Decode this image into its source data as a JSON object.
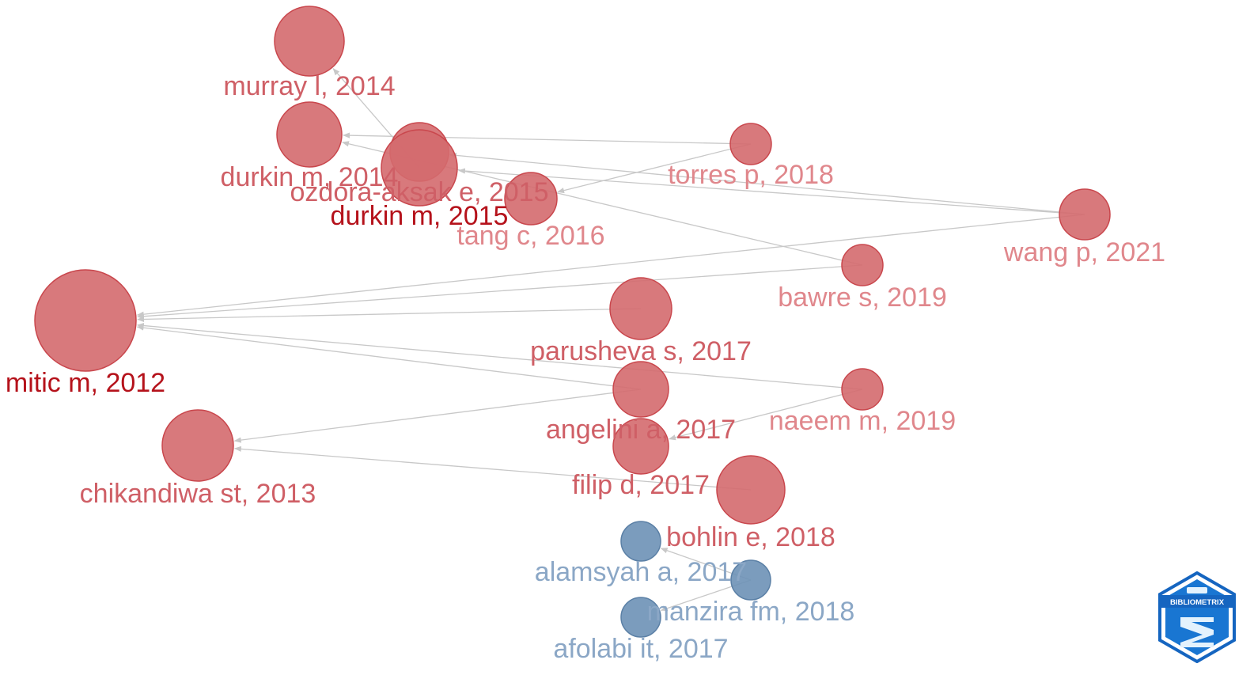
{
  "colors": {
    "cluster_red_fill": "#d46a6e",
    "cluster_red_stroke": "#c9474d",
    "cluster_blue_fill": "#6d91b6",
    "cluster_blue_stroke": "#5b80a6",
    "edge": "#c8c8c8",
    "logo_blue": "#1565c0"
  },
  "nodes": [
    {
      "id": "murray-l-2014",
      "label": "murray l, 2014",
      "cluster": "red"
    },
    {
      "id": "durkin-m-2014",
      "label": "durkin m, 2014",
      "cluster": "red"
    },
    {
      "id": "ozdora-aksak-e-2015",
      "label": "ozdora-aksak e, 2015",
      "cluster": "red"
    },
    {
      "id": "durkin-m-2015",
      "label": "durkin m, 2015",
      "cluster": "red"
    },
    {
      "id": "tang-c-2016",
      "label": "tang c, 2016",
      "cluster": "red"
    },
    {
      "id": "torres-p-2018",
      "label": "torres p, 2018",
      "cluster": "red"
    },
    {
      "id": "wang-p-2021",
      "label": "wang p, 2021",
      "cluster": "red"
    },
    {
      "id": "bawre-s-2019",
      "label": "bawre s, 2019",
      "cluster": "red"
    },
    {
      "id": "mitic-m-2012",
      "label": "mitic m, 2012",
      "cluster": "red"
    },
    {
      "id": "parusheva-s-2017",
      "label": "parusheva s, 2017",
      "cluster": "red"
    },
    {
      "id": "angelini-a-2017",
      "label": "angelini a, 2017",
      "cluster": "red"
    },
    {
      "id": "naeem-m-2019",
      "label": "naeem m, 2019",
      "cluster": "red"
    },
    {
      "id": "chikandiwa-st-2013",
      "label": "chikandiwa st, 2013",
      "cluster": "red"
    },
    {
      "id": "filip-d-2017",
      "label": "filip d, 2017",
      "cluster": "red"
    },
    {
      "id": "bohlin-e-2018",
      "label": "bohlin e, 2018",
      "cluster": "red"
    },
    {
      "id": "alamsyah-a-2017",
      "label": "alamsyah a, 2017",
      "cluster": "blue"
    },
    {
      "id": "manzira-fm-2018",
      "label": "manzira fm, 2018",
      "cluster": "blue"
    },
    {
      "id": "afolabi-it-2017",
      "label": "afolabi it, 2017",
      "cluster": "blue"
    }
  ],
  "edges": [
    {
      "from": "durkin-m-2015",
      "to": "murray-l-2014"
    },
    {
      "from": "torres-p-2018",
      "to": "durkin-m-2014"
    },
    {
      "from": "torres-p-2018",
      "to": "tang-c-2016"
    },
    {
      "from": "wang-p-2021",
      "to": "durkin-m-2015"
    },
    {
      "from": "wang-p-2021",
      "to": "ozdora-aksak-e-2015"
    },
    {
      "from": "wang-p-2021",
      "to": "mitic-m-2012"
    },
    {
      "from": "bawre-s-2019",
      "to": "durkin-m-2014"
    },
    {
      "from": "bawre-s-2019",
      "to": "mitic-m-2012"
    },
    {
      "from": "parusheva-s-2017",
      "to": "mitic-m-2012"
    },
    {
      "from": "angelini-a-2017",
      "to": "mitic-m-2012"
    },
    {
      "from": "angelini-a-2017",
      "to": "chikandiwa-st-2013"
    },
    {
      "from": "naeem-m-2019",
      "to": "mitic-m-2012"
    },
    {
      "from": "naeem-m-2019",
      "to": "filip-d-2017"
    },
    {
      "from": "bohlin-e-2018",
      "to": "chikandiwa-st-2013"
    },
    {
      "from": "manzira-fm-2018",
      "to": "alamsyah-a-2017"
    },
    {
      "from": "manzira-fm-2018",
      "to": "afolabi-it-2017"
    }
  ],
  "logo": {
    "text": "BIBLIOMETRIX"
  }
}
